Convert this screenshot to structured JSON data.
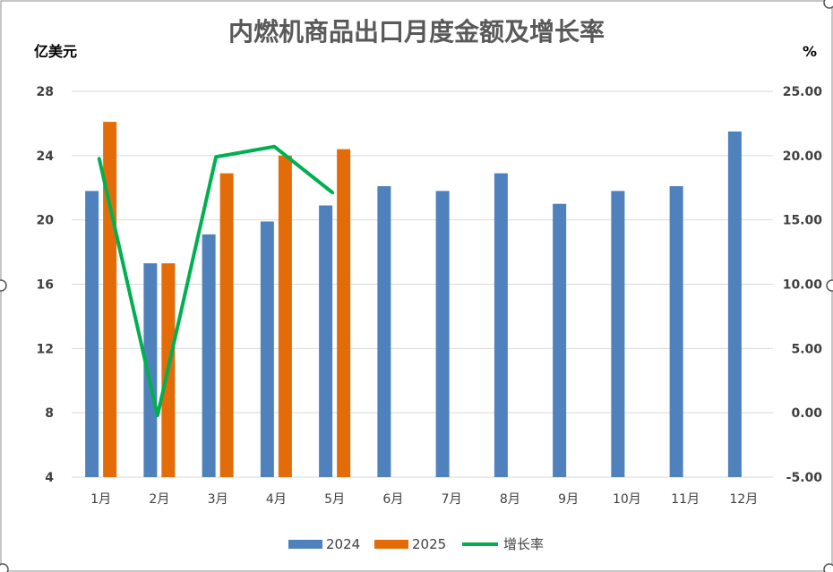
{
  "chart_data": {
    "type": "bar",
    "title": "内燃机商品出口月度金额及增长率",
    "ylabel": "亿美元",
    "y2label": "%",
    "categories": [
      "1月",
      "2月",
      "3月",
      "4月",
      "5月",
      "6月",
      "7月",
      "8月",
      "9月",
      "10月",
      "11月",
      "12月"
    ],
    "ylim": [
      4,
      28
    ],
    "yticks": [
      "4",
      "8",
      "12",
      "16",
      "20",
      "24",
      "28"
    ],
    "y2lim": [
      -5,
      25
    ],
    "y2ticks": [
      "-5.00",
      "0.00",
      "5.00",
      "10.00",
      "15.00",
      "20.00",
      "25.00"
    ],
    "series": [
      {
        "name": "2024",
        "kind": "bar",
        "axis": "left",
        "color": "#4F81BD",
        "values": [
          21.8,
          17.3,
          19.1,
          19.9,
          20.9,
          22.1,
          21.8,
          22.9,
          21.0,
          21.8,
          22.1,
          25.5
        ]
      },
      {
        "name": "2025",
        "kind": "bar",
        "axis": "left",
        "color": "#E36C09",
        "values": [
          26.1,
          17.3,
          22.9,
          24.0,
          24.4,
          null,
          null,
          null,
          null,
          null,
          null,
          null
        ]
      },
      {
        "name": "增长率",
        "kind": "line",
        "axis": "right",
        "color": "#00B050",
        "values": [
          19.8,
          -0.2,
          19.9,
          20.7,
          17.1,
          null,
          null,
          null,
          null,
          null,
          null,
          null
        ]
      }
    ],
    "grid": true,
    "legend_position": "bottom"
  }
}
